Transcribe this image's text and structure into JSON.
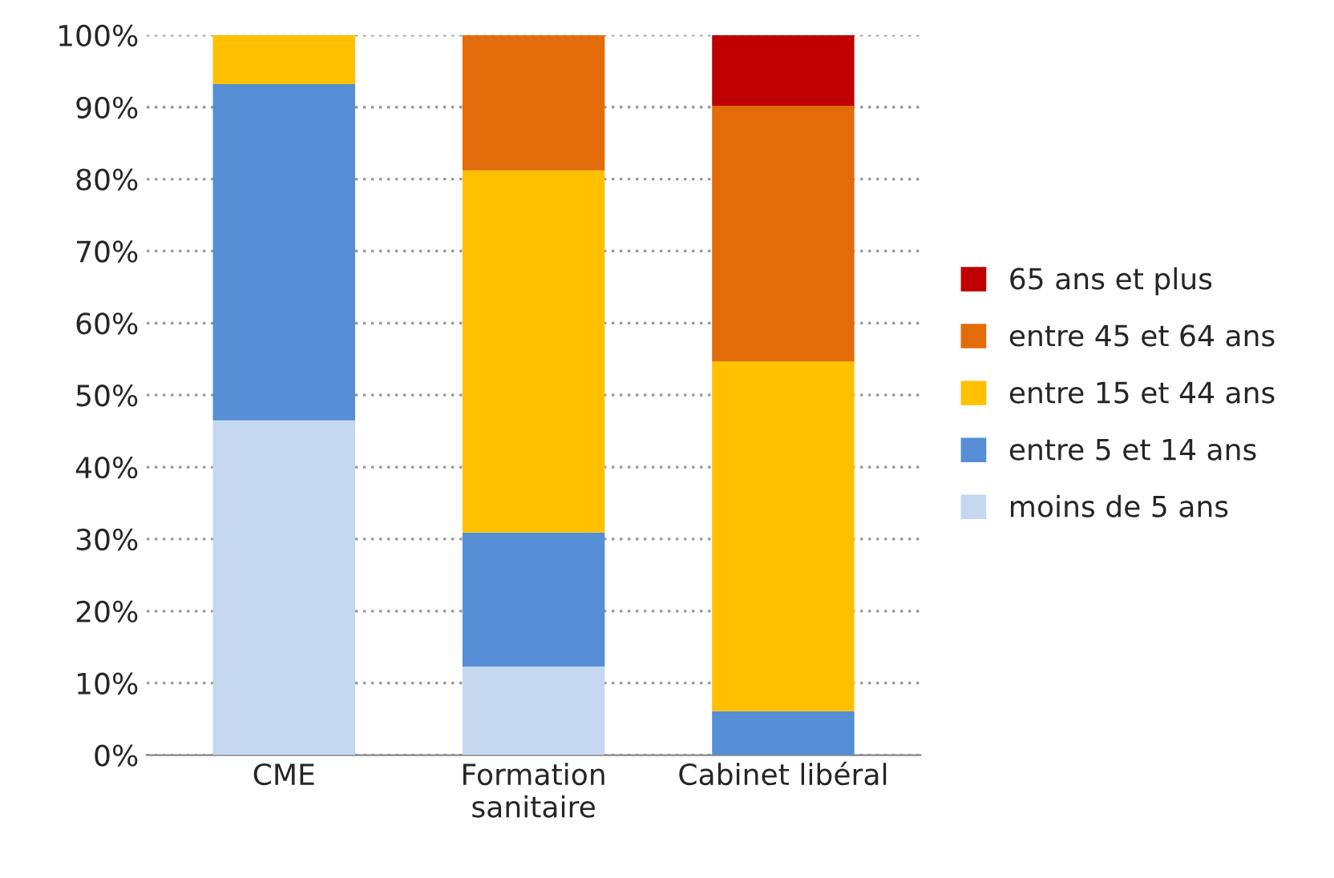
{
  "chart_data": {
    "type": "bar",
    "stacked": true,
    "categories": [
      "CME",
      "Formation sanitaire",
      "Cabinet libéral"
    ],
    "series": [
      {
        "name": "moins de 5 ans",
        "color": "#c5d8f0",
        "values": [
          46.5,
          12.3,
          null
        ]
      },
      {
        "name": "entre 5 et 14 ans",
        "color": "#558ed5",
        "values": [
          46.7,
          18.6,
          6.1
        ]
      },
      {
        "name": "entre 15 et 44 ans",
        "color": "#ffc000",
        "values": [
          6.8,
          50.3,
          48.6
        ]
      },
      {
        "name": "entre 45 et 64 ans",
        "color": "#e36c0a",
        "values": [
          null,
          18.8,
          35.5
        ]
      },
      {
        "name": "65 ans et plus",
        "color": "#c00000",
        "values": [
          null,
          null,
          9.8
        ]
      }
    ],
    "ylim": [
      0,
      100
    ],
    "yticks": [
      {
        "value": 0,
        "label": "0%"
      },
      {
        "value": 10,
        "label": "10%"
      },
      {
        "value": 20,
        "label": "20%"
      },
      {
        "value": 30,
        "label": "30%"
      },
      {
        "value": 40,
        "label": "40%"
      },
      {
        "value": 50,
        "label": "50%"
      },
      {
        "value": 60,
        "label": "60%"
      },
      {
        "value": 70,
        "label": "70%"
      },
      {
        "value": 80,
        "label": "80%"
      },
      {
        "value": 90,
        "label": "90%"
      },
      {
        "value": 100,
        "label": "100%"
      }
    ],
    "grid": "y",
    "legend": "right"
  }
}
